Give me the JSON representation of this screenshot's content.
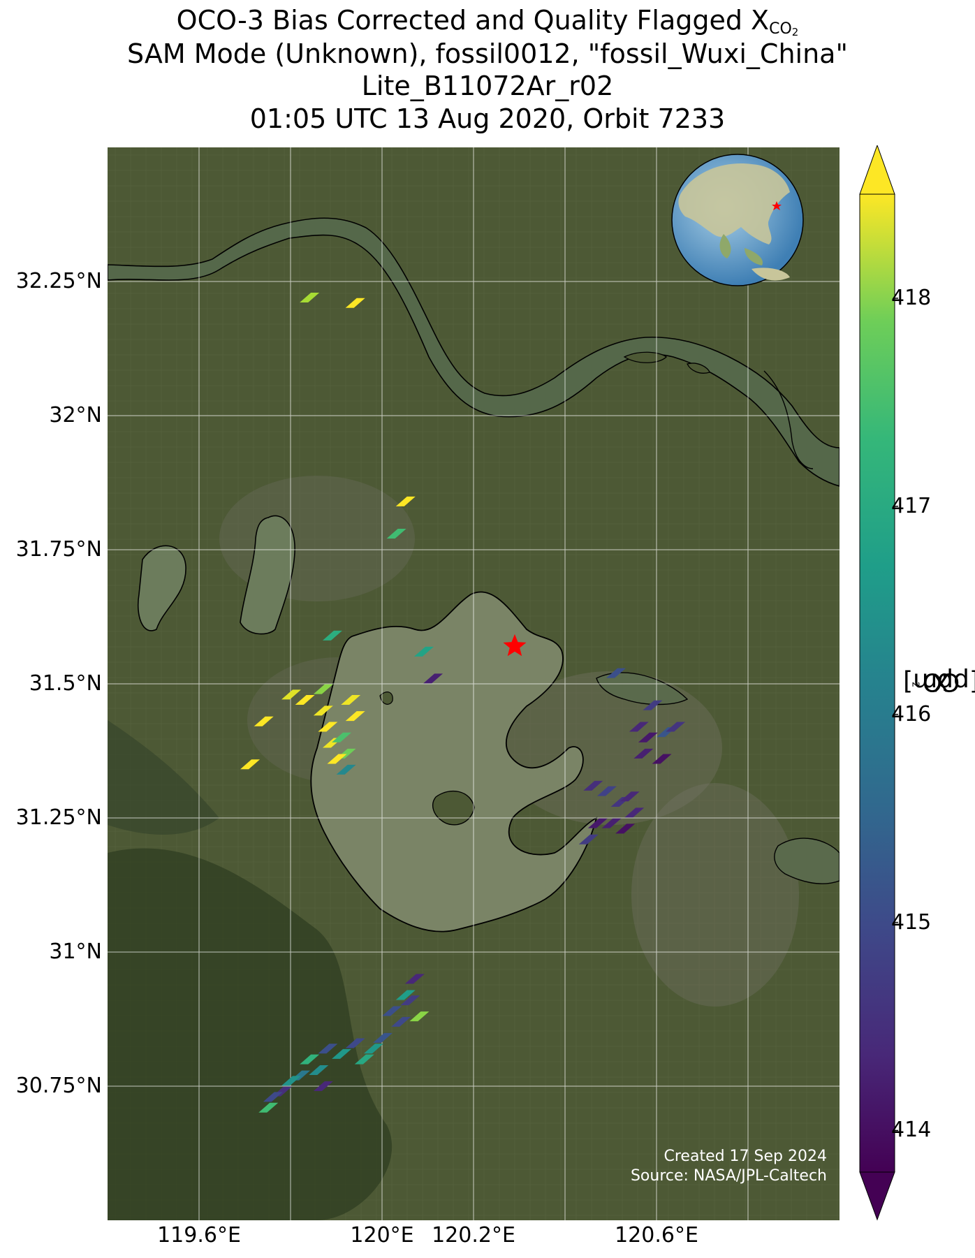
{
  "title": {
    "line1_prefix": "OCO-3 Bias Corrected and Quality Flagged X",
    "line1_sub": "CO",
    "line1_sub2": "2",
    "line2": "SAM Mode (Unknown), fossil0012, \"fossil_Wuxi_China\"",
    "line3": "Lite_B11072Ar_r02",
    "line4": "01:05 UTC 13 Aug 2020, Orbit 7233"
  },
  "map": {
    "lon_range": [
      119.4,
      121.0
    ],
    "lat_range": [
      30.5,
      32.5
    ],
    "grid": true,
    "target_marker": {
      "lon": 120.29,
      "lat": 31.57,
      "color": "#ff0000",
      "shape": "star"
    },
    "lat_ticks": [
      "32.25°N",
      "32°N",
      "31.75°N",
      "31.5°N",
      "31.25°N",
      "31°N",
      "30.75°N"
    ],
    "lat_tick_values": [
      32.25,
      32.0,
      31.75,
      31.5,
      31.25,
      31.0,
      30.75
    ],
    "lon_ticks": [
      "119.6°E",
      "120°E",
      "120.2°E",
      "120.6°E"
    ],
    "lon_tick_values": [
      119.6,
      120.0,
      120.2,
      120.6
    ],
    "inset": "globe-locator",
    "background": "satellite-imagery",
    "colors": {
      "land": "#4f5a35",
      "water": "#5e6c4a",
      "lake": "#7a8466",
      "coast": "#000000",
      "grid": "#ffffff"
    }
  },
  "credits": {
    "created": "Created 17 Sep 2024",
    "source": "Source: NASA/JPL-Caltech"
  },
  "colorbar": {
    "label_prefix": "X",
    "label_sub": "CO",
    "label_sub2": "2",
    "label_suffix": " [ppm]",
    "ticks": [
      "418",
      "417",
      "416",
      "415",
      "414"
    ],
    "tick_values": [
      418,
      417,
      416,
      415,
      414
    ],
    "range": [
      413.8,
      418.5
    ],
    "colormap": "viridis",
    "extend": "both"
  },
  "chart_data": {
    "type": "scatter",
    "x_name": "longitude",
    "y_name": "latitude",
    "value_name": "XCO2 (ppm)",
    "points": [
      {
        "lon": 119.84,
        "lat": 32.22,
        "v": 417.7
      },
      {
        "lon": 119.94,
        "lat": 32.21,
        "v": 418.3
      },
      {
        "lon": 120.05,
        "lat": 31.84,
        "v": 418.3
      },
      {
        "lon": 120.03,
        "lat": 31.78,
        "v": 416.9
      },
      {
        "lon": 119.89,
        "lat": 31.59,
        "v": 416.6
      },
      {
        "lon": 120.09,
        "lat": 31.56,
        "v": 416.4
      },
      {
        "lon": 120.11,
        "lat": 31.51,
        "v": 414.2
      },
      {
        "lon": 119.8,
        "lat": 31.48,
        "v": 418.1
      },
      {
        "lon": 119.83,
        "lat": 31.47,
        "v": 418.3
      },
      {
        "lon": 119.87,
        "lat": 31.49,
        "v": 417.5
      },
      {
        "lon": 119.93,
        "lat": 31.47,
        "v": 418.2
      },
      {
        "lon": 119.94,
        "lat": 31.44,
        "v": 418.3
      },
      {
        "lon": 119.87,
        "lat": 31.45,
        "v": 418.2
      },
      {
        "lon": 119.74,
        "lat": 31.43,
        "v": 418.4
      },
      {
        "lon": 119.88,
        "lat": 31.42,
        "v": 418.3
      },
      {
        "lon": 119.89,
        "lat": 31.39,
        "v": 418.2
      },
      {
        "lon": 119.91,
        "lat": 31.4,
        "v": 417.0
      },
      {
        "lon": 119.92,
        "lat": 31.37,
        "v": 417.3
      },
      {
        "lon": 119.9,
        "lat": 31.36,
        "v": 418.3
      },
      {
        "lon": 119.71,
        "lat": 31.35,
        "v": 418.3
      },
      {
        "lon": 119.92,
        "lat": 31.34,
        "v": 415.9
      },
      {
        "lon": 120.51,
        "lat": 31.52,
        "v": 414.9
      },
      {
        "lon": 120.59,
        "lat": 31.46,
        "v": 414.6
      },
      {
        "lon": 120.56,
        "lat": 31.42,
        "v": 414.3
      },
      {
        "lon": 120.58,
        "lat": 31.4,
        "v": 414.1
      },
      {
        "lon": 120.62,
        "lat": 31.41,
        "v": 415.0
      },
      {
        "lon": 120.64,
        "lat": 31.42,
        "v": 414.5
      },
      {
        "lon": 120.57,
        "lat": 31.37,
        "v": 414.2
      },
      {
        "lon": 120.61,
        "lat": 31.36,
        "v": 414.0
      },
      {
        "lon": 120.46,
        "lat": 31.31,
        "v": 414.4
      },
      {
        "lon": 120.49,
        "lat": 31.3,
        "v": 414.7
      },
      {
        "lon": 120.52,
        "lat": 31.28,
        "v": 414.5
      },
      {
        "lon": 120.54,
        "lat": 31.29,
        "v": 414.3
      },
      {
        "lon": 120.47,
        "lat": 31.24,
        "v": 414.1
      },
      {
        "lon": 120.5,
        "lat": 31.24,
        "v": 414.2
      },
      {
        "lon": 120.53,
        "lat": 31.23,
        "v": 414.0
      },
      {
        "lon": 120.45,
        "lat": 31.21,
        "v": 414.6
      },
      {
        "lon": 120.55,
        "lat": 31.26,
        "v": 414.3
      },
      {
        "lon": 120.07,
        "lat": 30.95,
        "v": 414.3
      },
      {
        "lon": 120.06,
        "lat": 30.91,
        "v": 414.6
      },
      {
        "lon": 120.08,
        "lat": 30.88,
        "v": 417.5
      },
      {
        "lon": 120.04,
        "lat": 30.87,
        "v": 414.8
      },
      {
        "lon": 120.0,
        "lat": 30.84,
        "v": 415.0
      },
      {
        "lon": 119.98,
        "lat": 30.82,
        "v": 416.2
      },
      {
        "lon": 119.96,
        "lat": 30.8,
        "v": 416.5
      },
      {
        "lon": 119.94,
        "lat": 30.83,
        "v": 414.8
      },
      {
        "lon": 119.91,
        "lat": 30.81,
        "v": 416.2
      },
      {
        "lon": 119.88,
        "lat": 30.82,
        "v": 414.9
      },
      {
        "lon": 119.86,
        "lat": 30.78,
        "v": 416.0
      },
      {
        "lon": 119.84,
        "lat": 30.8,
        "v": 416.7
      },
      {
        "lon": 119.82,
        "lat": 30.77,
        "v": 415.6
      },
      {
        "lon": 119.8,
        "lat": 30.76,
        "v": 416.1
      },
      {
        "lon": 119.78,
        "lat": 30.74,
        "v": 414.4
      },
      {
        "lon": 119.76,
        "lat": 30.73,
        "v": 414.8
      },
      {
        "lon": 119.75,
        "lat": 30.71,
        "v": 416.9
      },
      {
        "lon": 119.87,
        "lat": 30.75,
        "v": 414.3
      },
      {
        "lon": 120.02,
        "lat": 30.89,
        "v": 414.9
      },
      {
        "lon": 120.05,
        "lat": 30.92,
        "v": 416.3
      }
    ]
  }
}
